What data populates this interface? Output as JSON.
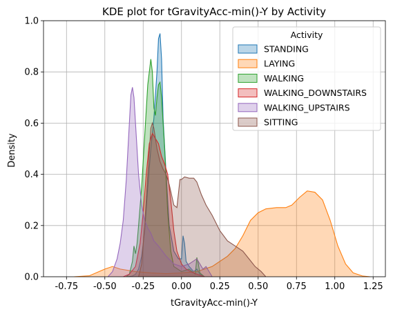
{
  "chart_data": {
    "type": "area",
    "title": "KDE plot for tGravityAcc-min()-Y by Activity",
    "xlabel": "tGravityAcc-min()-Y",
    "ylabel": "Density",
    "xlim": [
      -0.9,
      1.33
    ],
    "ylim": [
      0,
      1.0
    ],
    "x_ticks": [
      "-0.75",
      "-0.50",
      "-0.25",
      "0.00",
      "0.25",
      "0.50",
      "0.75",
      "1.00",
      "1.25"
    ],
    "x_tick_values": [
      -0.75,
      -0.5,
      -0.25,
      0.0,
      0.25,
      0.5,
      0.75,
      1.0,
      1.25
    ],
    "y_ticks": [
      "0.0",
      "0.2",
      "0.4",
      "0.6",
      "0.8",
      "1.0"
    ],
    "y_tick_values": [
      0.0,
      0.2,
      0.4,
      0.6,
      0.8,
      1.0
    ],
    "grid": true,
    "legend": {
      "title": "Activity",
      "placement": "top-right"
    },
    "series": [
      {
        "name": "STANDING",
        "color": "#1f77b4",
        "points": [
          [
            -0.35,
            0
          ],
          [
            -0.32,
            0.003
          ],
          [
            -0.3,
            0.01
          ],
          [
            -0.28,
            0.03
          ],
          [
            -0.26,
            0.08
          ],
          [
            -0.24,
            0.18
          ],
          [
            -0.22,
            0.35
          ],
          [
            -0.2,
            0.5
          ],
          [
            -0.18,
            0.62
          ],
          [
            -0.16,
            0.8
          ],
          [
            -0.15,
            0.93
          ],
          [
            -0.14,
            0.95
          ],
          [
            -0.13,
            0.85
          ],
          [
            -0.12,
            0.62
          ],
          [
            -0.1,
            0.4
          ],
          [
            -0.08,
            0.2
          ],
          [
            -0.05,
            0.1
          ],
          [
            -0.02,
            0.07
          ],
          [
            0.0,
            0.07
          ],
          [
            0.01,
            0.16
          ],
          [
            0.02,
            0.13
          ],
          [
            0.03,
            0.06
          ],
          [
            0.05,
            0.04
          ],
          [
            0.08,
            0.02
          ],
          [
            0.1,
            0.03
          ],
          [
            0.12,
            0.01
          ],
          [
            0.15,
            0
          ]
        ]
      },
      {
        "name": "LAYING",
        "color": "#ff7f0e",
        "points": [
          [
            -0.7,
            0
          ],
          [
            -0.6,
            0.004
          ],
          [
            -0.5,
            0.03
          ],
          [
            -0.45,
            0.04
          ],
          [
            -0.4,
            0.03
          ],
          [
            -0.3,
            0.02
          ],
          [
            -0.2,
            0.015
          ],
          [
            -0.1,
            0.012
          ],
          [
            0.0,
            0.015
          ],
          [
            0.1,
            0.02
          ],
          [
            0.2,
            0.04
          ],
          [
            0.3,
            0.08
          ],
          [
            0.35,
            0.11
          ],
          [
            0.4,
            0.16
          ],
          [
            0.45,
            0.22
          ],
          [
            0.5,
            0.25
          ],
          [
            0.55,
            0.265
          ],
          [
            0.62,
            0.27
          ],
          [
            0.68,
            0.27
          ],
          [
            0.72,
            0.28
          ],
          [
            0.77,
            0.31
          ],
          [
            0.82,
            0.335
          ],
          [
            0.87,
            0.33
          ],
          [
            0.92,
            0.3
          ],
          [
            0.97,
            0.22
          ],
          [
            1.02,
            0.12
          ],
          [
            1.07,
            0.05
          ],
          [
            1.12,
            0.015
          ],
          [
            1.18,
            0.003
          ],
          [
            1.23,
            0
          ]
        ]
      },
      {
        "name": "WALKING",
        "color": "#2ca02c",
        "points": [
          [
            -0.36,
            0
          ],
          [
            -0.34,
            0.01
          ],
          [
            -0.32,
            0.06
          ],
          [
            -0.31,
            0.12
          ],
          [
            -0.3,
            0.09
          ],
          [
            -0.29,
            0.13
          ],
          [
            -0.28,
            0.2
          ],
          [
            -0.26,
            0.35
          ],
          [
            -0.24,
            0.55
          ],
          [
            -0.22,
            0.75
          ],
          [
            -0.2,
            0.85
          ],
          [
            -0.19,
            0.8
          ],
          [
            -0.18,
            0.66
          ],
          [
            -0.17,
            0.63
          ],
          [
            -0.16,
            0.7
          ],
          [
            -0.15,
            0.75
          ],
          [
            -0.14,
            0.76
          ],
          [
            -0.13,
            0.7
          ],
          [
            -0.11,
            0.5
          ],
          [
            -0.09,
            0.25
          ],
          [
            -0.07,
            0.1
          ],
          [
            -0.05,
            0.04
          ],
          [
            0.0,
            0.02
          ],
          [
            0.05,
            0.03
          ],
          [
            0.09,
            0.01
          ],
          [
            0.1,
            0.075
          ],
          [
            0.11,
            0.05
          ],
          [
            0.12,
            0.015
          ],
          [
            0.15,
            0
          ]
        ]
      },
      {
        "name": "WALKING_DOWNSTAIRS",
        "color": "#d62728",
        "points": [
          [
            -0.38,
            0
          ],
          [
            -0.34,
            0.01
          ],
          [
            -0.3,
            0.04
          ],
          [
            -0.27,
            0.13
          ],
          [
            -0.25,
            0.25
          ],
          [
            -0.23,
            0.4
          ],
          [
            -0.21,
            0.52
          ],
          [
            -0.19,
            0.56
          ],
          [
            -0.17,
            0.54
          ],
          [
            -0.15,
            0.52
          ],
          [
            -0.13,
            0.47
          ],
          [
            -0.11,
            0.44
          ],
          [
            -0.09,
            0.4
          ],
          [
            -0.07,
            0.3
          ],
          [
            -0.05,
            0.18
          ],
          [
            -0.03,
            0.1
          ],
          [
            0.0,
            0.05
          ],
          [
            0.03,
            0.03
          ],
          [
            0.06,
            0.02
          ],
          [
            0.1,
            0.01
          ],
          [
            0.15,
            0
          ]
        ]
      },
      {
        "name": "WALKING_UPSTAIRS",
        "color": "#9467bd",
        "points": [
          [
            -0.48,
            0
          ],
          [
            -0.45,
            0.02
          ],
          [
            -0.42,
            0.07
          ],
          [
            -0.4,
            0.13
          ],
          [
            -0.38,
            0.22
          ],
          [
            -0.36,
            0.38
          ],
          [
            -0.34,
            0.6
          ],
          [
            -0.33,
            0.71
          ],
          [
            -0.32,
            0.74
          ],
          [
            -0.31,
            0.7
          ],
          [
            -0.3,
            0.6
          ],
          [
            -0.28,
            0.4
          ],
          [
            -0.26,
            0.28
          ],
          [
            -0.24,
            0.22
          ],
          [
            -0.22,
            0.19
          ],
          [
            -0.2,
            0.17
          ],
          [
            -0.18,
            0.14
          ],
          [
            -0.15,
            0.12
          ],
          [
            -0.1,
            0.08
          ],
          [
            -0.05,
            0.05
          ],
          [
            0.0,
            0.04
          ],
          [
            0.05,
            0.05
          ],
          [
            0.1,
            0.07
          ],
          [
            0.14,
            0.03
          ],
          [
            0.16,
            0.04
          ],
          [
            0.18,
            0.02
          ],
          [
            0.2,
            0
          ]
        ]
      },
      {
        "name": "SITTING",
        "color": "#8c564b",
        "points": [
          [
            -0.28,
            0
          ],
          [
            -0.26,
            0.05
          ],
          [
            -0.24,
            0.2
          ],
          [
            -0.22,
            0.4
          ],
          [
            -0.2,
            0.58
          ],
          [
            -0.19,
            0.6
          ],
          [
            -0.18,
            0.58
          ],
          [
            -0.16,
            0.5
          ],
          [
            -0.14,
            0.45
          ],
          [
            -0.12,
            0.42
          ],
          [
            -0.1,
            0.4
          ],
          [
            -0.08,
            0.36
          ],
          [
            -0.05,
            0.28
          ],
          [
            -0.03,
            0.27
          ],
          [
            -0.01,
            0.38
          ],
          [
            0.0,
            0.38
          ],
          [
            0.02,
            0.39
          ],
          [
            0.05,
            0.385
          ],
          [
            0.08,
            0.385
          ],
          [
            0.1,
            0.37
          ],
          [
            0.13,
            0.32
          ],
          [
            0.16,
            0.28
          ],
          [
            0.2,
            0.24
          ],
          [
            0.25,
            0.18
          ],
          [
            0.3,
            0.14
          ],
          [
            0.35,
            0.12
          ],
          [
            0.4,
            0.1
          ],
          [
            0.44,
            0.07
          ],
          [
            0.48,
            0.04
          ],
          [
            0.52,
            0.02
          ],
          [
            0.55,
            0
          ]
        ]
      }
    ]
  }
}
